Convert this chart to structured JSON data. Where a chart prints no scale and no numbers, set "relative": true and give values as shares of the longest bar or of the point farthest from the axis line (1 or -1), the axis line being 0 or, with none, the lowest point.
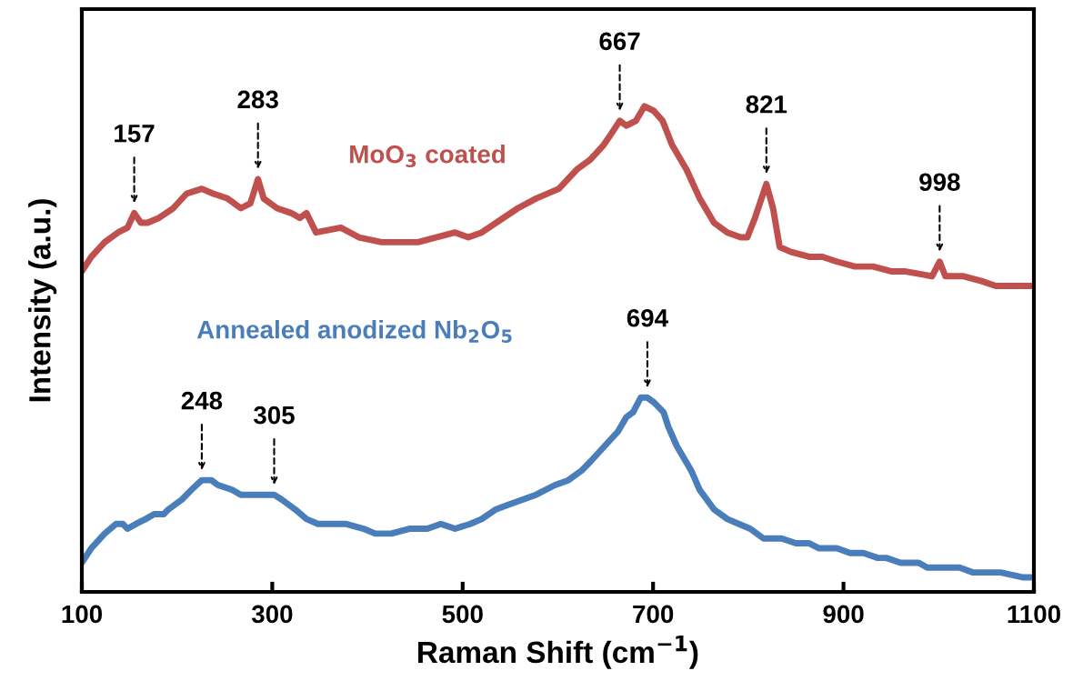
{
  "chart_data": {
    "type": "line",
    "relative": true,
    "xlabel": "Raman Shift (cm$^{−1}$)",
    "ylabel": "Intensity (a.u.)",
    "xlim": [
      100,
      1100
    ],
    "xticks": [
      100,
      300,
      500,
      700,
      900,
      1100
    ],
    "tick_labels": "x",
    "grid": false,
    "legend": false,
    "marker": "none",
    "line_style": "solid",
    "series": [
      {
        "name": "MoO$_{3}$ coated",
        "color": "#c0504d",
        "x": [
          100,
          110,
          124,
          138,
          148,
          155,
          162,
          169,
          181,
          196,
          210,
          226,
          238,
          253,
          267,
          277,
          285,
          291,
          305,
          320,
          329,
          336,
          346,
          372,
          391,
          415,
          453,
          472,
          492,
          506,
          520,
          535,
          558,
          577,
          601,
          620,
          634,
          648,
          655,
          665,
          672,
          682,
          691,
          701,
          710,
          720,
          735,
          749,
          764,
          778,
          792,
          799,
          807,
          819,
          826,
          833,
          845,
          864,
          878,
          893,
          912,
          931,
          950,
          964,
          993,
          1001,
          1007,
          1026,
          1045,
          1060,
          1074,
          1100
        ],
        "values": [
          0.66,
          0.69,
          0.72,
          0.74,
          0.75,
          0.78,
          0.76,
          0.76,
          0.77,
          0.79,
          0.82,
          0.83,
          0.82,
          0.81,
          0.79,
          0.8,
          0.85,
          0.81,
          0.79,
          0.78,
          0.77,
          0.78,
          0.74,
          0.75,
          0.73,
          0.72,
          0.72,
          0.73,
          0.74,
          0.73,
          0.74,
          0.76,
          0.79,
          0.81,
          0.83,
          0.87,
          0.89,
          0.92,
          0.94,
          0.97,
          0.96,
          0.97,
          1.0,
          0.99,
          0.97,
          0.92,
          0.87,
          0.81,
          0.76,
          0.74,
          0.73,
          0.73,
          0.77,
          0.84,
          0.79,
          0.71,
          0.7,
          0.69,
          0.69,
          0.68,
          0.67,
          0.67,
          0.66,
          0.66,
          0.65,
          0.68,
          0.65,
          0.65,
          0.64,
          0.63,
          0.63,
          0.63
        ]
      },
      {
        "name": "Annealed anodized Nb$_{2}$O$_{5}$",
        "color": "#4a7ebb",
        "x": [
          100,
          110,
          124,
          136,
          143,
          148,
          157,
          167,
          176,
          186,
          191,
          205,
          215,
          226,
          236,
          243,
          258,
          267,
          277,
          296,
          302,
          310,
          324,
          336,
          348,
          363,
          377,
          396,
          408,
          425,
          444,
          463,
          477,
          492,
          508,
          520,
          535,
          549,
          563,
          577,
          597,
          611,
          625,
          635,
          649,
          663,
          672,
          679,
          687,
          694,
          701,
          711,
          716,
          725,
          740,
          749,
          764,
          778,
          790,
          802,
          816,
          835,
          850,
          864,
          874,
          883,
          893,
          907,
          921,
          936,
          945,
          960,
          969,
          979,
          988,
          1007,
          1022,
          1036,
          1055,
          1065,
          1088,
          1100
        ],
        "values": [
          0.06,
          0.09,
          0.12,
          0.14,
          0.14,
          0.13,
          0.14,
          0.15,
          0.16,
          0.16,
          0.17,
          0.19,
          0.21,
          0.23,
          0.23,
          0.22,
          0.21,
          0.2,
          0.2,
          0.2,
          0.2,
          0.19,
          0.17,
          0.15,
          0.14,
          0.14,
          0.14,
          0.13,
          0.12,
          0.12,
          0.13,
          0.13,
          0.14,
          0.13,
          0.14,
          0.15,
          0.17,
          0.18,
          0.19,
          0.2,
          0.22,
          0.23,
          0.25,
          0.27,
          0.3,
          0.33,
          0.36,
          0.37,
          0.4,
          0.4,
          0.39,
          0.37,
          0.34,
          0.3,
          0.25,
          0.21,
          0.17,
          0.15,
          0.14,
          0.13,
          0.11,
          0.11,
          0.1,
          0.1,
          0.09,
          0.09,
          0.09,
          0.08,
          0.08,
          0.07,
          0.07,
          0.06,
          0.06,
          0.06,
          0.05,
          0.05,
          0.05,
          0.04,
          0.04,
          0.04,
          0.03,
          0.03
        ]
      }
    ],
    "annotations": [
      {
        "text": "157",
        "x": 155,
        "y": 0.78
      },
      {
        "text": "283",
        "x": 285,
        "y": 0.85
      },
      {
        "text": "667",
        "x": 665,
        "y": 0.97
      },
      {
        "text": "821",
        "x": 819,
        "y": 0.84
      },
      {
        "text": "998",
        "x": 1001,
        "y": 0.68
      },
      {
        "text": "248",
        "x": 226,
        "y": 0.23
      },
      {
        "text": "305",
        "x": 302,
        "y": 0.2
      },
      {
        "text": "694",
        "x": 694,
        "y": 0.4
      }
    ]
  }
}
